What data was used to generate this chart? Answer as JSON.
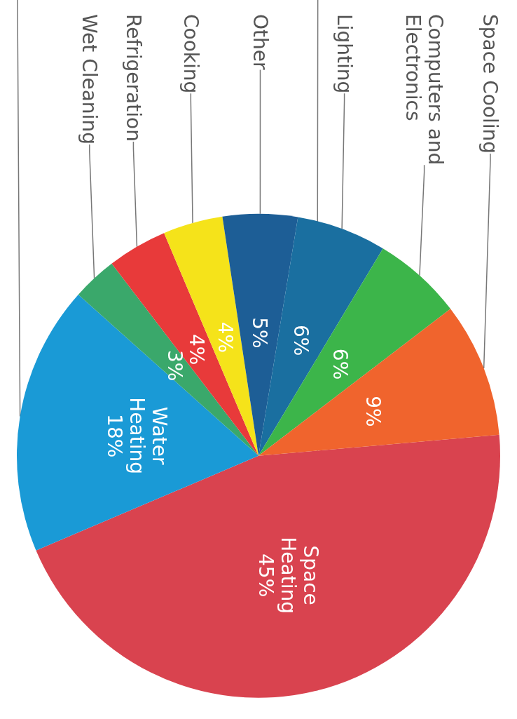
{
  "chart_data": {
    "type": "pie",
    "categories": [
      "Space Heating",
      "Water Heating",
      "Wet Cleaning",
      "Refrigeration",
      "Cooking",
      "Other",
      "Lighting",
      "Computers and Electronics",
      "Space Cooling"
    ],
    "values": [
      45,
      18,
      3,
      4,
      4,
      5,
      6,
      6,
      9
    ],
    "colors": [
      "#d9434f",
      "#1a9ad6",
      "#3aa86b",
      "#e83a3a",
      "#f5e31a",
      "#1d5e96",
      "#1a6fa0",
      "#3cb54a",
      "#f0642d"
    ],
    "value_labels": [
      "45%",
      "18%",
      "3%",
      "4%",
      "4%",
      "5%",
      "6%",
      "6%",
      "9%"
    ]
  }
}
